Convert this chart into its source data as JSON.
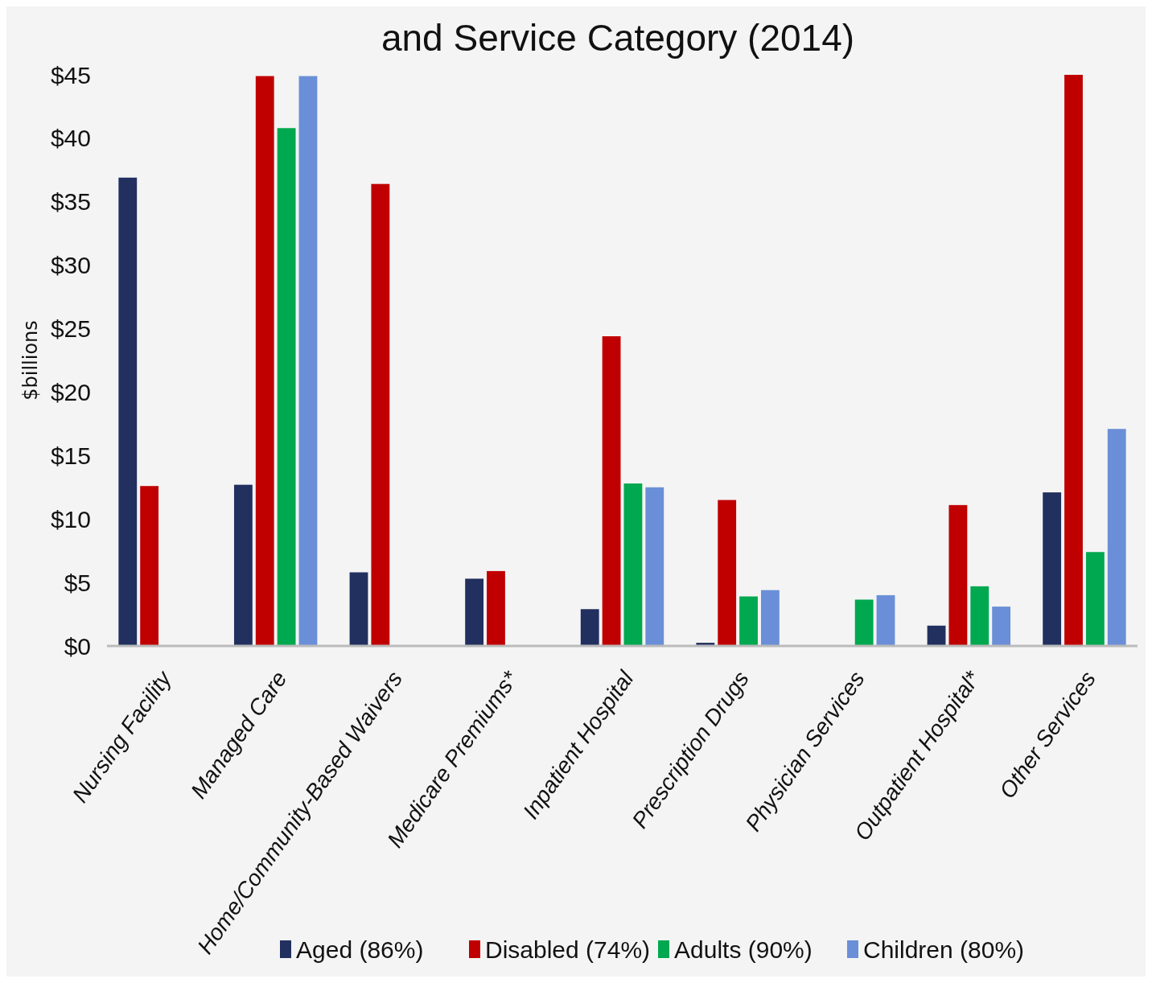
{
  "chart_data": {
    "type": "bar",
    "title": "and Service Category (2014)",
    "ylabel": "$billions",
    "categories": [
      "Nursing Facility",
      "Managed Care",
      "Home/Community-Based Waivers",
      "Medicare Premiums*",
      "Inpatient Hospital",
      "Prescription Drugs",
      "Physician Services",
      "Outpatient Hospital*",
      "Other Services"
    ],
    "series": [
      {
        "name": "Aged (86%)",
        "color": "#22305f",
        "values": [
          36.9,
          12.7,
          5.8,
          5.3,
          2.9,
          0.25,
          null,
          1.6,
          12.1
        ]
      },
      {
        "name": "Disabled (74%)",
        "color": "#c00000",
        "values": [
          12.6,
          44.9,
          36.4,
          5.9,
          24.4,
          11.5,
          null,
          11.1,
          45
        ]
      },
      {
        "name": "Adults (90%)",
        "color": "#00a84f",
        "values": [
          null,
          40.8,
          null,
          null,
          12.8,
          3.9,
          3.65,
          4.7,
          7.4
        ]
      },
      {
        "name": "Children (80%)",
        "color": "#6a8fd8",
        "values": [
          null,
          44.9,
          null,
          null,
          12.5,
          4.4,
          4,
          3.1,
          17.1
        ]
      }
    ],
    "ylim": [
      0,
      45
    ],
    "yticks": [
      {
        "value": 0,
        "label": "$0"
      },
      {
        "value": 5,
        "label": "$5"
      },
      {
        "value": 10,
        "label": "$10"
      },
      {
        "value": 15,
        "label": "$15"
      },
      {
        "value": 20,
        "label": "$20"
      },
      {
        "value": 25,
        "label": "$25"
      },
      {
        "value": 30,
        "label": "$30"
      },
      {
        "value": 35,
        "label": "$35"
      },
      {
        "value": 40,
        "label": "$40"
      },
      {
        "value": 45,
        "label": "$45"
      }
    ],
    "grid": false,
    "legend": "bottom"
  }
}
